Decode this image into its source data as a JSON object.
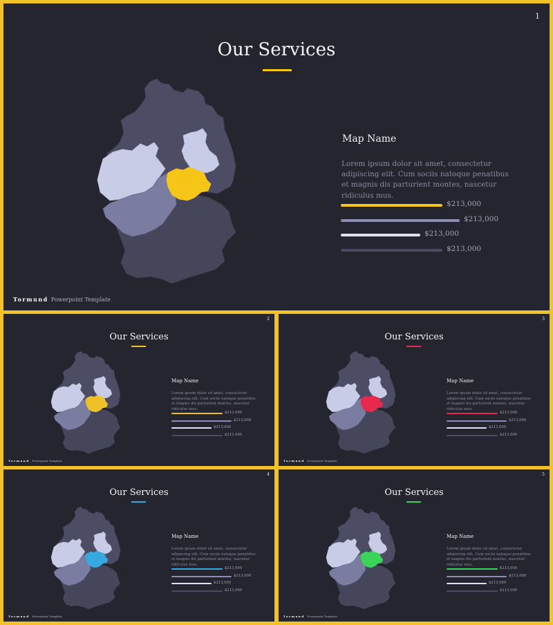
{
  "slides": [
    {
      "number": "1",
      "title": "Our Services",
      "map_name": "Map Name",
      "description": "Lorem ipsum dolor sit amet, consectetur adipiscing elit. Cum sociis natoque penatibus et magnis dis parturient montes, nascetur ridiculus mus.",
      "accent": "#f5c518",
      "bars": [
        {
          "value": "$213,000",
          "fill": 0.6,
          "color": "#f5c518"
        },
        {
          "value": "$213,000",
          "fill": 0.7,
          "color": "#8b8db6"
        },
        {
          "value": "$213,000",
          "fill": 0.47,
          "color": "#dfe1f3"
        },
        {
          "value": "$213,000",
          "fill": 0.6,
          "color": "#4a4b62"
        }
      ],
      "brand_name": "Tormund",
      "brand_tag": "Powerpoint Template"
    },
    {
      "number": "2",
      "title": "Our Services",
      "map_name": "Map Name",
      "description": "Lorem ipsum dolor sit amet, consectetur adipiscing elit. Cum sociis natoque penatibus et magnis dis parturient montes, nascetur ridiculus mus.",
      "accent": "#f0c028",
      "bars": [
        {
          "value": "$213,000",
          "fill": 0.6,
          "color": "#f0c028"
        },
        {
          "value": "$213,000",
          "fill": 0.7,
          "color": "#8b8db6"
        },
        {
          "value": "$213,000",
          "fill": 0.47,
          "color": "#dfe1f3"
        },
        {
          "value": "$213,000",
          "fill": 0.6,
          "color": "#4a4b62"
        }
      ],
      "brand_name": "Tormund",
      "brand_tag": "Powerpoint Template"
    },
    {
      "number": "3",
      "title": "Our Services",
      "map_name": "Map Name",
      "description": "Lorem ipsum dolor sit amet, consectetur adipiscing elit. Cum sociis natoque penatibus et magnis dis parturient montes, nascetur ridiculus mus.",
      "accent": "#e8294e",
      "bars": [
        {
          "value": "$213,000",
          "fill": 0.6,
          "color": "#e8294e"
        },
        {
          "value": "$213,000",
          "fill": 0.7,
          "color": "#8b8db6"
        },
        {
          "value": "$213,000",
          "fill": 0.47,
          "color": "#dfe1f3"
        },
        {
          "value": "$213,000",
          "fill": 0.6,
          "color": "#4a4b62"
        }
      ],
      "brand_name": "Tormund",
      "brand_tag": "Powerpoint Template"
    },
    {
      "number": "4",
      "title": "Our Services",
      "map_name": "Map Name",
      "description": "Lorem ipsum dolor sit amet, consectetur adipiscing elit. Cum sociis natoque penatibus et magnis dis parturient montes, nascetur ridiculus mus.",
      "accent": "#36a9e1",
      "bars": [
        {
          "value": "$213,000",
          "fill": 0.6,
          "color": "#36a9e1"
        },
        {
          "value": "$213,000",
          "fill": 0.7,
          "color": "#8b8db6"
        },
        {
          "value": "$213,000",
          "fill": 0.47,
          "color": "#dfe1f3"
        },
        {
          "value": "$213,000",
          "fill": 0.6,
          "color": "#4a4b62"
        }
      ],
      "brand_name": "Tormund",
      "brand_tag": "Powerpoint Template"
    },
    {
      "number": "5",
      "title": "Our Services",
      "map_name": "Map Name",
      "description": "Lorem ipsum dolor sit amet, consectetur adipiscing elit. Cum sociis natoque penatibus et magnis dis parturient montes, nascetur ridiculus mus.",
      "accent": "#3bd45a",
      "bars": [
        {
          "value": "$213,000",
          "fill": 0.6,
          "color": "#3bd45a"
        },
        {
          "value": "$213,000",
          "fill": 0.7,
          "color": "#8b8db6"
        },
        {
          "value": "$213,000",
          "fill": 0.47,
          "color": "#dfe1f3"
        },
        {
          "value": "$213,000",
          "fill": 0.6,
          "color": "#4a4b62"
        }
      ],
      "brand_name": "Tormund",
      "brand_tag": "Powerpoint Template"
    }
  ],
  "map_colors": {
    "base": "#4c4d64",
    "dark": "#454659",
    "light": "#c9cce6",
    "medium": "#7a7ca1"
  }
}
